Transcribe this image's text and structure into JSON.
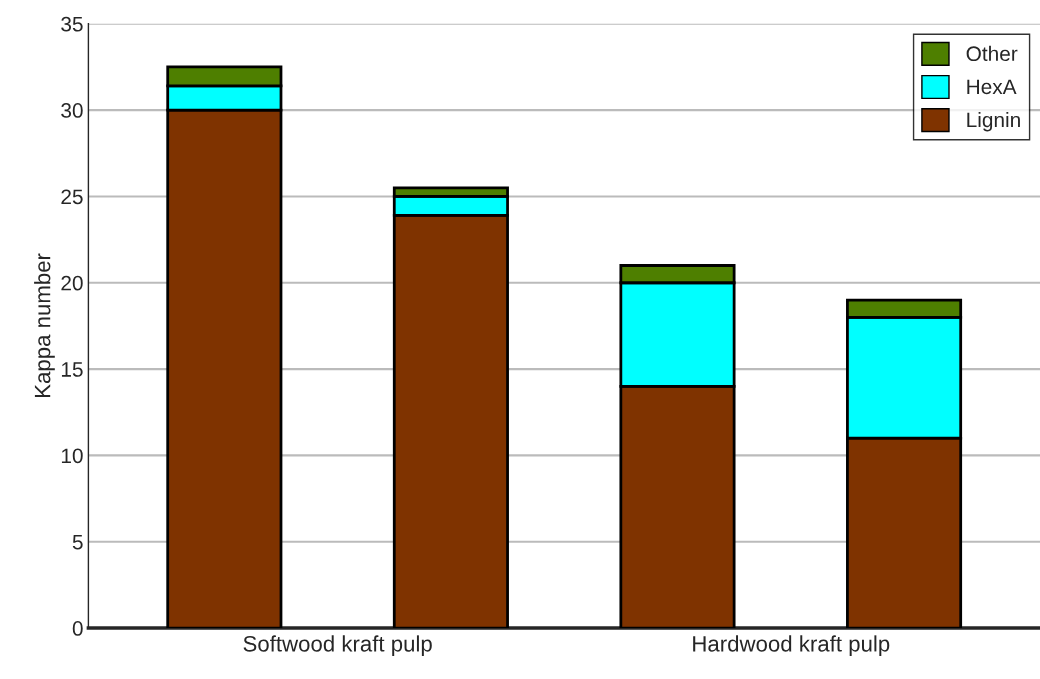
{
  "chart_data": {
    "type": "bar",
    "stacked": true,
    "ylabel": "Kappa number",
    "categories": [
      null,
      null,
      null,
      null
    ],
    "series": [
      {
        "name": "Lignin",
        "color": "#7f3300",
        "values": [
          30,
          23.9,
          14,
          11
        ]
      },
      {
        "name": "HexA",
        "color": "#00ffff",
        "values": [
          1.4,
          1.1,
          6,
          7
        ]
      },
      {
        "name": "Other",
        "color": "#4e7f00",
        "values": [
          1.1,
          0.5,
          1,
          1
        ]
      }
    ],
    "annotations": [
      "Softwood kraft pulp",
      "Hardwood kraft pulp"
    ],
    "ylim": [
      0,
      35
    ],
    "yticks": [
      0,
      5,
      10,
      15,
      20,
      25,
      30,
      35
    ],
    "grid": "y",
    "legend": "top right"
  }
}
